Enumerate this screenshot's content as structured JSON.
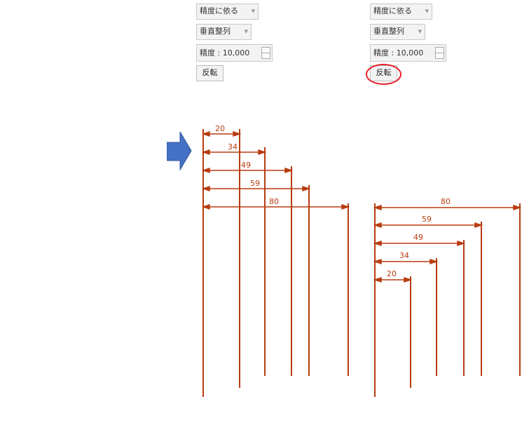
{
  "left_panel": {
    "mode_select": "精度に依る",
    "arrangement_select": "垂直整列",
    "precision_label": "精度 :",
    "precision_value": "10,000",
    "flip_button": "反転"
  },
  "right_panel": {
    "mode_select": "精度に依る",
    "arrangement_select": "垂直整列",
    "precision_label": "精度 :",
    "precision_value": "10,000",
    "flip_button": "反転"
  },
  "colors": {
    "dimension": "#b83c10",
    "arrow": "#4472c4",
    "highlight": "#e8202a"
  },
  "drawing": {
    "left_dimensions": [
      "20",
      "34",
      "49",
      "59",
      "80"
    ],
    "right_dimensions": [
      "80",
      "59",
      "49",
      "34",
      "20"
    ]
  }
}
